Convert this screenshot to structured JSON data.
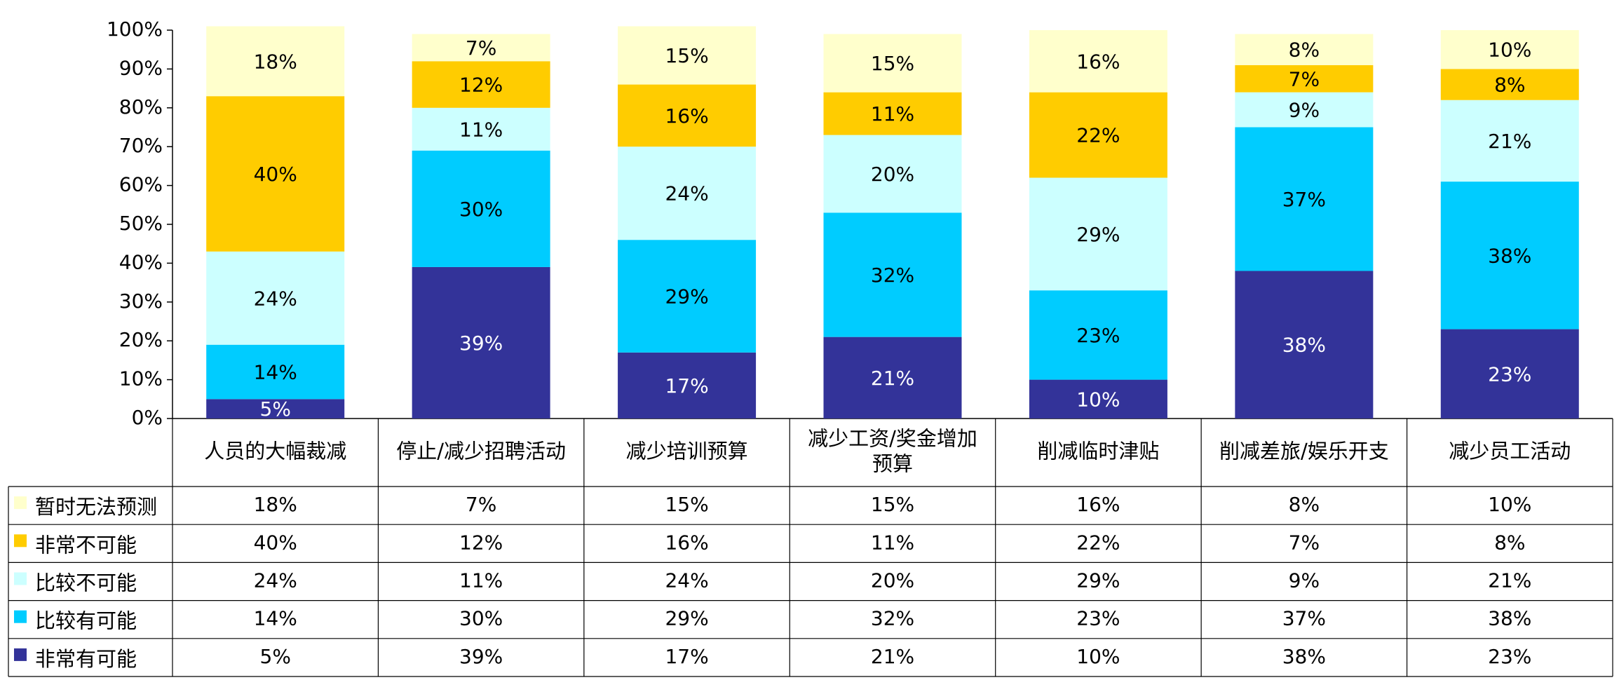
{
  "chart_data": {
    "type": "stacked-bar-100",
    "y_ticks": [
      "0%",
      "10%",
      "20%",
      "30%",
      "40%",
      "50%",
      "60%",
      "70%",
      "80%",
      "90%",
      "100%"
    ],
    "ylim": [
      0,
      100
    ],
    "categories": [
      [
        "人员的大幅裁减"
      ],
      [
        "停止/减少招聘活动"
      ],
      [
        "减少培训预算"
      ],
      [
        "减少工资/奖金增加",
        "预算"
      ],
      [
        "削减临时津贴"
      ],
      [
        "削减差旅/娱乐开支"
      ],
      [
        "减少员工活动"
      ]
    ],
    "series": [
      {
        "name": "非常有可能",
        "color": "#333399",
        "text_color": "#ffffff",
        "values": [
          5,
          39,
          17,
          21,
          10,
          38,
          23
        ],
        "labels": [
          "5%",
          "39%",
          "17%",
          "21%",
          "10%",
          "38%",
          "23%"
        ]
      },
      {
        "name": "比较有可能",
        "color": "#00ccff",
        "text_color": "#000000",
        "values": [
          14,
          30,
          29,
          32,
          23,
          37,
          38
        ],
        "labels": [
          "14%",
          "30%",
          "29%",
          "32%",
          "23%",
          "37%",
          "38%"
        ]
      },
      {
        "name": "比较不可能",
        "color": "#ccffff",
        "text_color": "#000000",
        "values": [
          24,
          11,
          24,
          20,
          29,
          9,
          21
        ],
        "labels": [
          "24%",
          "11%",
          "24%",
          "20%",
          "29%",
          "9%",
          "21%"
        ]
      },
      {
        "name": "非常不可能",
        "color": "#ffcc00",
        "text_color": "#000000",
        "values": [
          40,
          12,
          16,
          11,
          22,
          7,
          8
        ],
        "labels": [
          "40%",
          "12%",
          "16%",
          "11%",
          "22%",
          "7%",
          "8%"
        ]
      },
      {
        "name": "暂时无法预测",
        "color": "#ffffcc",
        "text_color": "#000000",
        "values": [
          18,
          7,
          15,
          15,
          16,
          8,
          10
        ],
        "labels": [
          "18%",
          "7%",
          "15%",
          "15%",
          "16%",
          "8%",
          "10%"
        ]
      }
    ],
    "table_row_order": [
      "暂时无法预测",
      "非常不可能",
      "比较不可能",
      "比较有可能",
      "非常有可能"
    ]
  }
}
